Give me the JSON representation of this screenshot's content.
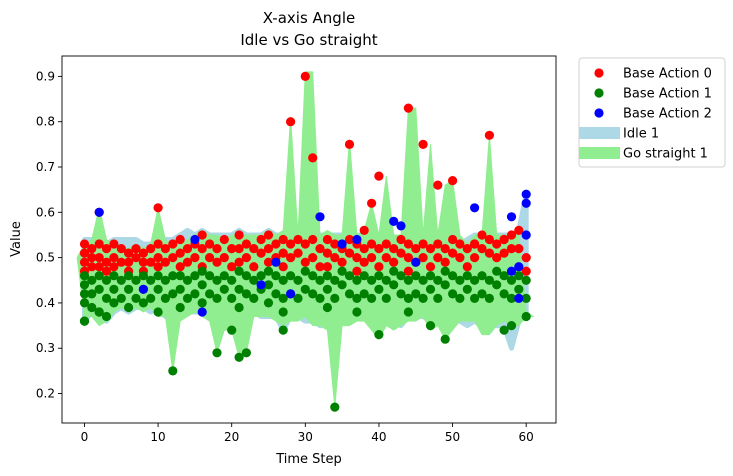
{
  "chart_data": {
    "type": "scatter",
    "title": "X-axis Angle",
    "subtitle": "Idle vs Go straight",
    "xlabel": "Time Step",
    "ylabel": "Value",
    "xlim": [
      -3.05,
      64.05
    ],
    "ylim": [
      0.135,
      0.945
    ],
    "xticks": [
      0,
      10,
      20,
      30,
      40,
      50,
      60
    ],
    "yticks": [
      0.2,
      0.3,
      0.4,
      0.5,
      0.6,
      0.7,
      0.8,
      0.9
    ],
    "grid": false,
    "legend_position": "outside-top-right",
    "bands": [
      {
        "name": "Idle 1",
        "color": "#add8e6",
        "x": [
          0,
          1,
          2,
          3,
          4,
          5,
          6,
          7,
          8,
          9,
          10,
          11,
          12,
          13,
          14,
          15,
          16,
          17,
          18,
          19,
          20,
          21,
          22,
          23,
          24,
          25,
          26,
          27,
          28,
          29,
          30,
          31,
          32,
          33,
          34,
          35,
          36,
          37,
          38,
          39,
          40,
          41,
          42,
          43,
          44,
          45,
          46,
          47,
          48,
          49,
          50,
          51,
          52,
          53,
          54,
          55,
          56,
          57,
          58,
          59,
          60
        ],
        "lower": [
          0.36,
          0.38,
          0.37,
          0.36,
          0.38,
          0.39,
          0.38,
          0.39,
          0.39,
          0.38,
          0.39,
          0.37,
          0.37,
          0.38,
          0.38,
          0.38,
          0.38,
          0.37,
          0.37,
          0.38,
          0.38,
          0.37,
          0.38,
          0.38,
          0.37,
          0.37,
          0.37,
          0.34,
          0.37,
          0.37,
          0.36,
          0.36,
          0.35,
          0.35,
          0.36,
          0.36,
          0.36,
          0.37,
          0.38,
          0.37,
          0.37,
          0.36,
          0.36,
          0.35,
          0.37,
          0.37,
          0.37,
          0.36,
          0.36,
          0.37,
          0.37,
          0.36,
          0.35,
          0.36,
          0.35,
          0.35,
          0.35,
          0.35,
          0.3,
          0.36,
          0.37
        ],
        "upper": [
          0.54,
          0.54,
          0.54,
          0.53,
          0.54,
          0.54,
          0.54,
          0.54,
          0.53,
          0.53,
          0.54,
          0.54,
          0.54,
          0.55,
          0.56,
          0.55,
          0.56,
          0.55,
          0.55,
          0.55,
          0.55,
          0.56,
          0.55,
          0.55,
          0.55,
          0.56,
          0.55,
          0.55,
          0.55,
          0.55,
          0.55,
          0.54,
          0.55,
          0.55,
          0.55,
          0.55,
          0.54,
          0.55,
          0.55,
          0.54,
          0.54,
          0.53,
          0.53,
          0.54,
          0.54,
          0.54,
          0.54,
          0.54,
          0.54,
          0.54,
          0.54,
          0.53,
          0.54,
          0.55,
          0.55,
          0.55,
          0.55,
          0.55,
          0.55,
          0.56,
          0.64
        ]
      },
      {
        "name": "Go straight 1",
        "color": "#90ee90",
        "x": [
          -1,
          0,
          1,
          2,
          3,
          4,
          5,
          6,
          7,
          8,
          9,
          10,
          11,
          12,
          13,
          14,
          15,
          16,
          17,
          18,
          19,
          20,
          21,
          22,
          23,
          24,
          25,
          26,
          27,
          28,
          29,
          30,
          31,
          32,
          33,
          34,
          35,
          36,
          37,
          38,
          39,
          40,
          41,
          42,
          43,
          44,
          45,
          46,
          47,
          48,
          49,
          50,
          51,
          52,
          53,
          54,
          55,
          56,
          57,
          58,
          59,
          60,
          61
        ],
        "lower": [
          0.5,
          0.37,
          0.37,
          0.35,
          0.36,
          0.38,
          0.39,
          0.38,
          0.39,
          0.38,
          0.39,
          0.37,
          0.37,
          0.25,
          0.36,
          0.37,
          0.38,
          0.37,
          0.36,
          0.29,
          0.34,
          0.34,
          0.28,
          0.29,
          0.37,
          0.37,
          0.37,
          0.36,
          0.35,
          0.36,
          0.36,
          0.37,
          0.35,
          0.35,
          0.34,
          0.17,
          0.35,
          0.35,
          0.36,
          0.36,
          0.34,
          0.32,
          0.35,
          0.34,
          0.35,
          0.36,
          0.36,
          0.37,
          0.34,
          0.35,
          0.32,
          0.34,
          0.36,
          0.36,
          0.36,
          0.33,
          0.33,
          0.35,
          0.36,
          0.35,
          0.35,
          0.37,
          0.37
        ],
        "upper": [
          0.5,
          0.53,
          0.54,
          0.61,
          0.54,
          0.53,
          0.52,
          0.52,
          0.53,
          0.52,
          0.53,
          0.61,
          0.54,
          0.52,
          0.53,
          0.54,
          0.55,
          0.56,
          0.55,
          0.55,
          0.54,
          0.55,
          0.55,
          0.55,
          0.55,
          0.55,
          0.56,
          0.55,
          0.56,
          0.81,
          0.55,
          0.91,
          0.91,
          0.55,
          0.56,
          0.55,
          0.55,
          0.76,
          0.55,
          0.56,
          0.62,
          0.55,
          0.68,
          0.55,
          0.55,
          0.83,
          0.83,
          0.55,
          0.75,
          0.55,
          0.66,
          0.67,
          0.55,
          0.53,
          0.55,
          0.55,
          0.77,
          0.55,
          0.55,
          0.55,
          0.55,
          0.38,
          0.37
        ]
      }
    ],
    "series": [
      {
        "name": "Base Action 0",
        "color": "#ff0000",
        "x": [
          0,
          0,
          0,
          0,
          1,
          1,
          1,
          2,
          2,
          2,
          3,
          3,
          3,
          4,
          4,
          4,
          5,
          5,
          6,
          6,
          6,
          7,
          7,
          8,
          8,
          8,
          9,
          9,
          10,
          10,
          10,
          11,
          11,
          12,
          12,
          13,
          13,
          13,
          14,
          14,
          15,
          15,
          16,
          16,
          16,
          17,
          17,
          18,
          18,
          19,
          19,
          20,
          20,
          21,
          21,
          21,
          22,
          22,
          23,
          23,
          24,
          24,
          25,
          25,
          25,
          26,
          26,
          27,
          27,
          27,
          28,
          28,
          29,
          29,
          30,
          30,
          31,
          31,
          32,
          32,
          33,
          33,
          33,
          34,
          34,
          35,
          35,
          36,
          36,
          37,
          37,
          37,
          38,
          38,
          39,
          39,
          40,
          40,
          41,
          41,
          42,
          42,
          43,
          43,
          44,
          44,
          44,
          45,
          45,
          46,
          46,
          47,
          47,
          48,
          48,
          49,
          49,
          50,
          50,
          51,
          51,
          52,
          52,
          53,
          53,
          54,
          54,
          55,
          55,
          56,
          56,
          57,
          57,
          58,
          58,
          59,
          59,
          60,
          60,
          2,
          10,
          28,
          30,
          31,
          36,
          38,
          39,
          40,
          44,
          46,
          48,
          50,
          55,
          53,
          57
        ],
        "y": [
          0.53,
          0.51,
          0.49,
          0.47,
          0.52,
          0.5,
          0.48,
          0.53,
          0.5,
          0.48,
          0.52,
          0.49,
          0.47,
          0.53,
          0.5,
          0.48,
          0.52,
          0.49,
          0.51,
          0.49,
          0.47,
          0.52,
          0.5,
          0.51,
          0.49,
          0.47,
          0.52,
          0.49,
          0.53,
          0.5,
          0.48,
          0.52,
          0.49,
          0.53,
          0.5,
          0.54,
          0.51,
          0.48,
          0.52,
          0.49,
          0.53,
          0.5,
          0.55,
          0.52,
          0.48,
          0.53,
          0.5,
          0.52,
          0.49,
          0.54,
          0.5,
          0.52,
          0.48,
          0.55,
          0.52,
          0.49,
          0.53,
          0.5,
          0.52,
          0.48,
          0.54,
          0.51,
          0.55,
          0.52,
          0.49,
          0.53,
          0.5,
          0.54,
          0.51,
          0.48,
          0.53,
          0.5,
          0.54,
          0.51,
          0.53,
          0.49,
          0.54,
          0.5,
          0.52,
          0.48,
          0.54,
          0.51,
          0.48,
          0.53,
          0.5,
          0.52,
          0.49,
          0.54,
          0.51,
          0.53,
          0.5,
          0.47,
          0.52,
          0.49,
          0.53,
          0.5,
          0.52,
          0.48,
          0.53,
          0.5,
          0.52,
          0.49,
          0.54,
          0.51,
          0.53,
          0.5,
          0.47,
          0.52,
          0.49,
          0.53,
          0.5,
          0.52,
          0.48,
          0.53,
          0.5,
          0.52,
          0.49,
          0.54,
          0.51,
          0.53,
          0.5,
          0.52,
          0.48,
          0.53,
          0.5,
          0.55,
          0.52,
          0.54,
          0.51,
          0.53,
          0.5,
          0.54,
          0.51,
          0.55,
          0.52,
          0.56,
          0.52,
          0.5,
          0.47,
          0.6,
          0.61,
          0.8,
          0.9,
          0.72,
          0.75,
          0.56,
          0.62,
          0.68,
          0.83,
          0.75,
          0.66,
          0.67,
          0.77,
          0.53,
          0.54
        ]
      },
      {
        "name": "Base Action 1",
        "color": "#008000",
        "x": [
          0,
          0,
          0,
          0,
          0,
          1,
          1,
          1,
          2,
          2,
          2,
          3,
          3,
          3,
          4,
          4,
          4,
          5,
          5,
          6,
          6,
          6,
          7,
          7,
          8,
          8,
          8,
          9,
          9,
          10,
          10,
          10,
          11,
          11,
          12,
          12,
          13,
          13,
          13,
          14,
          14,
          15,
          15,
          16,
          16,
          16,
          17,
          17,
          18,
          18,
          19,
          19,
          20,
          20,
          21,
          21,
          21,
          22,
          22,
          23,
          23,
          24,
          24,
          25,
          25,
          25,
          26,
          26,
          27,
          27,
          27,
          28,
          28,
          29,
          29,
          30,
          30,
          31,
          31,
          32,
          32,
          33,
          33,
          33,
          34,
          34,
          35,
          35,
          36,
          36,
          37,
          37,
          37,
          38,
          38,
          39,
          39,
          40,
          40,
          41,
          41,
          42,
          42,
          43,
          43,
          44,
          44,
          44,
          45,
          45,
          46,
          46,
          47,
          47,
          48,
          48,
          49,
          49,
          50,
          50,
          51,
          51,
          52,
          52,
          53,
          53,
          54,
          54,
          55,
          55,
          56,
          56,
          57,
          57,
          58,
          58,
          59,
          59,
          60,
          60,
          0,
          12,
          18,
          21,
          22,
          27,
          34,
          40,
          47,
          49,
          57,
          58,
          60,
          20,
          2
        ],
        "y": [
          0.46,
          0.44,
          0.42,
          0.4,
          0.36,
          0.45,
          0.42,
          0.39,
          0.46,
          0.43,
          0.38,
          0.45,
          0.41,
          0.37,
          0.46,
          0.43,
          0.4,
          0.45,
          0.41,
          0.46,
          0.43,
          0.39,
          0.45,
          0.41,
          0.46,
          0.43,
          0.4,
          0.45,
          0.41,
          0.46,
          0.43,
          0.38,
          0.45,
          0.41,
          0.46,
          0.42,
          0.46,
          0.43,
          0.39,
          0.45,
          0.41,
          0.46,
          0.42,
          0.47,
          0.44,
          0.4,
          0.46,
          0.42,
          0.45,
          0.41,
          0.46,
          0.43,
          0.45,
          0.41,
          0.47,
          0.43,
          0.39,
          0.46,
          0.42,
          0.45,
          0.41,
          0.46,
          0.43,
          0.47,
          0.44,
          0.4,
          0.46,
          0.42,
          0.45,
          0.41,
          0.38,
          0.46,
          0.42,
          0.45,
          0.41,
          0.47,
          0.43,
          0.46,
          0.42,
          0.45,
          0.41,
          0.46,
          0.43,
          0.39,
          0.45,
          0.41,
          0.47,
          0.44,
          0.46,
          0.42,
          0.45,
          0.41,
          0.38,
          0.46,
          0.42,
          0.45,
          0.41,
          0.46,
          0.43,
          0.45,
          0.41,
          0.47,
          0.44,
          0.46,
          0.42,
          0.45,
          0.41,
          0.38,
          0.46,
          0.42,
          0.45,
          0.41,
          0.46,
          0.43,
          0.45,
          0.41,
          0.47,
          0.44,
          0.46,
          0.42,
          0.45,
          0.41,
          0.46,
          0.43,
          0.45,
          0.41,
          0.46,
          0.42,
          0.45,
          0.41,
          0.47,
          0.44,
          0.46,
          0.42,
          0.45,
          0.41,
          0.46,
          0.43,
          0.45,
          0.41,
          0.36,
          0.25,
          0.29,
          0.28,
          0.29,
          0.34,
          0.17,
          0.33,
          0.35,
          0.32,
          0.34,
          0.35,
          0.37,
          0.34,
          0.38
        ]
      },
      {
        "name": "Base Action 2",
        "color": "#0000ff",
        "x": [
          2,
          8,
          15,
          16,
          24,
          26,
          28,
          32,
          35,
          37,
          42,
          43,
          45,
          53,
          58,
          58,
          59,
          59,
          60,
          60,
          60
        ],
        "y": [
          0.6,
          0.43,
          0.54,
          0.38,
          0.44,
          0.49,
          0.42,
          0.59,
          0.53,
          0.54,
          0.58,
          0.57,
          0.49,
          0.61,
          0.59,
          0.47,
          0.48,
          0.41,
          0.64,
          0.62,
          0.55
        ]
      }
    ],
    "legend": [
      "Base Action 0",
      "Base Action 1",
      "Base Action 2",
      "Idle 1",
      "Go straight 1"
    ]
  }
}
